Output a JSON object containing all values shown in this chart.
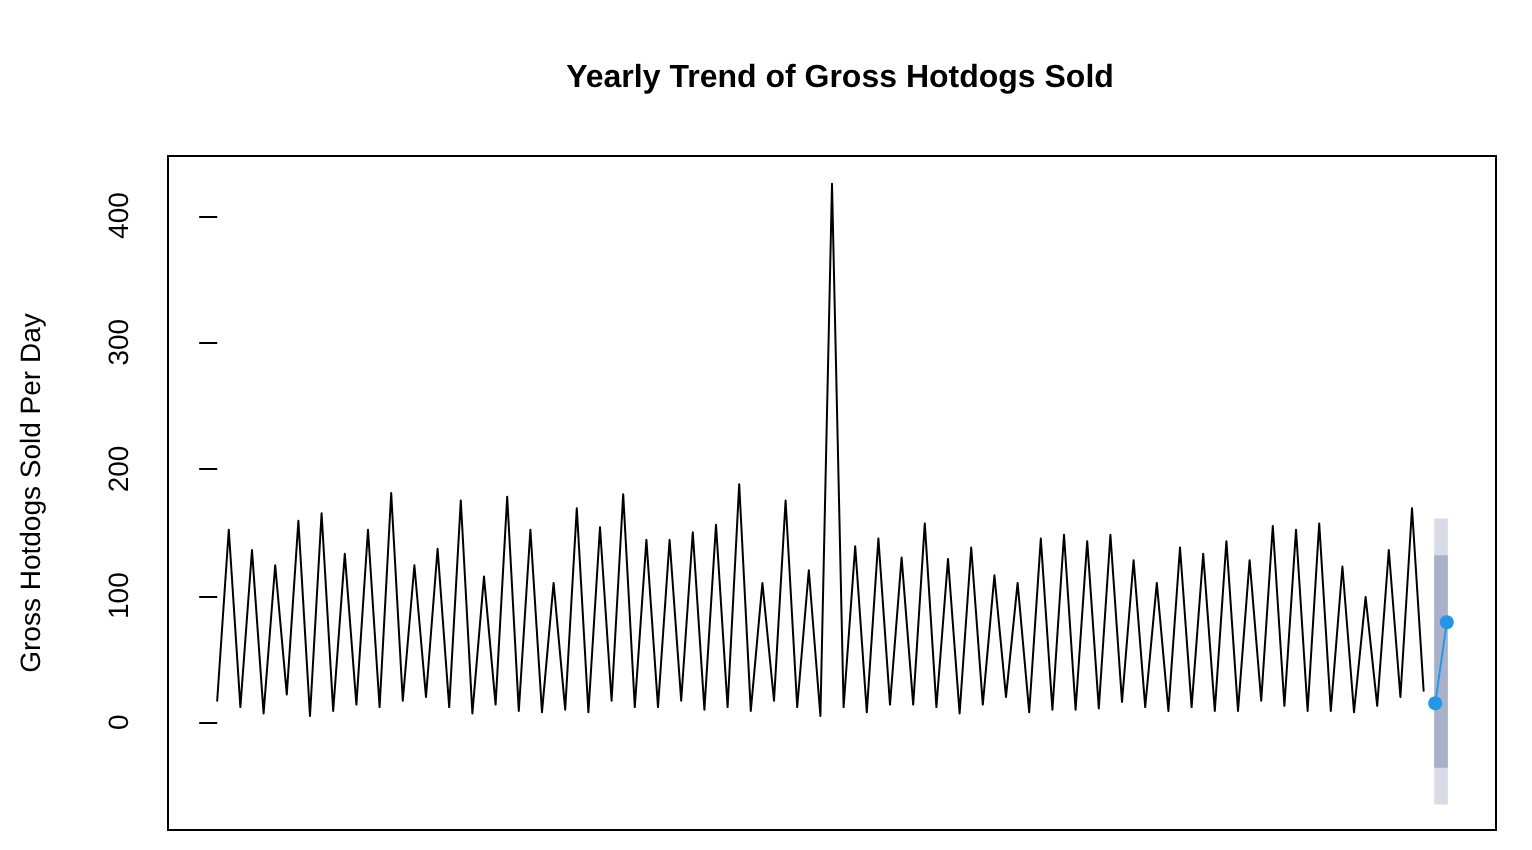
{
  "chart_data": {
    "type": "line",
    "title": "Yearly Trend of Gross Hotdogs Sold",
    "ylabel": "Gross Hotdogs Sold Per Day",
    "categories": [
      null,
      null,
      null,
      null,
      null,
      null,
      null,
      null,
      null,
      null,
      null,
      null,
      null,
      null,
      null,
      null,
      null,
      null,
      null,
      null,
      null,
      null,
      null,
      null,
      null,
      null,
      null,
      null,
      null,
      null,
      null,
      null,
      null,
      null,
      null,
      null,
      null,
      null,
      null,
      null,
      null,
      null,
      null,
      null,
      null,
      null,
      null,
      null,
      null,
      null,
      null,
      null,
      null,
      null,
      null,
      null,
      null,
      null,
      null,
      null,
      null,
      null,
      null,
      null,
      null,
      null,
      null,
      null,
      null,
      null,
      null,
      null,
      null,
      null,
      null,
      null,
      null,
      null,
      null,
      null,
      null,
      null,
      null,
      null,
      null,
      null,
      null,
      null,
      null,
      null,
      null,
      null,
      null,
      null,
      null,
      null,
      null,
      null,
      null,
      null,
      null,
      null,
      null,
      null,
      null,
      null,
      null
    ],
    "ylim": [
      -85,
      447
    ],
    "yticks": [
      0,
      100,
      200,
      300,
      400
    ],
    "tick_labels": "y",
    "marker": "none",
    "series": [
      {
        "color": "#000000",
        "values": [
          17,
          152,
          12,
          136,
          7,
          124,
          22,
          159,
          5,
          165,
          9,
          133,
          14,
          152,
          12,
          181,
          17,
          124,
          20,
          137,
          12,
          175,
          7,
          115,
          14,
          178,
          9,
          152,
          8,
          110,
          10,
          169,
          8,
          154,
          17,
          180,
          12,
          144,
          12,
          144,
          17,
          150,
          10,
          156,
          12,
          188,
          9,
          110,
          17,
          175,
          12,
          120,
          5,
          425,
          12,
          139,
          8,
          145,
          14,
          130,
          14,
          157,
          12,
          129,
          7,
          138,
          14,
          116,
          20,
          110,
          8,
          145,
          10,
          148,
          10,
          143,
          11,
          148,
          16,
          128,
          12,
          110,
          9,
          138,
          12,
          133,
          9,
          143,
          9,
          128,
          17,
          155,
          13,
          152,
          9,
          157,
          9,
          123,
          8,
          99,
          13,
          136,
          20,
          169,
          25,
          null,
          null
        ]
      },
      {
        "color": "#d9dce6",
        "values": [
          null,
          null,
          null,
          null,
          null,
          null,
          null,
          null,
          null,
          null,
          null,
          null,
          null,
          null,
          null,
          null,
          null,
          null,
          null,
          null,
          null,
          null,
          null,
          null,
          null,
          null,
          null,
          null,
          null,
          null,
          null,
          null,
          null,
          null,
          null,
          null,
          null,
          null,
          null,
          null,
          null,
          null,
          null,
          null,
          null,
          null,
          null,
          null,
          null,
          null,
          null,
          null,
          null,
          null,
          null,
          null,
          null,
          null,
          null,
          null,
          null,
          null,
          null,
          null,
          null,
          null,
          null,
          null,
          null,
          null,
          null,
          null,
          null,
          null,
          null,
          null,
          null,
          null,
          null,
          null,
          null,
          null,
          null,
          null,
          null,
          null,
          null,
          null,
          null,
          null,
          null,
          null,
          null,
          null,
          null,
          null,
          null,
          null,
          null,
          null,
          null,
          null,
          null,
          null,
          null,
          15,
          79
        ],
        "lower": [
          null,
          null,
          null,
          null,
          null,
          null,
          null,
          null,
          null,
          null,
          null,
          null,
          null,
          null,
          null,
          null,
          null,
          null,
          null,
          null,
          null,
          null,
          null,
          null,
          null,
          null,
          null,
          null,
          null,
          null,
          null,
          null,
          null,
          null,
          null,
          null,
          null,
          null,
          null,
          null,
          null,
          null,
          null,
          null,
          null,
          null,
          null,
          null,
          null,
          null,
          null,
          null,
          null,
          null,
          null,
          null,
          null,
          null,
          null,
          null,
          null,
          null,
          null,
          null,
          null,
          null,
          null,
          null,
          null,
          null,
          null,
          null,
          null,
          null,
          null,
          null,
          null,
          null,
          null,
          null,
          null,
          null,
          null,
          null,
          null,
          null,
          null,
          null,
          null,
          null,
          null,
          null,
          null,
          null,
          null,
          null,
          null,
          null,
          null,
          null,
          null,
          null,
          null,
          null,
          null,
          -64,
          -64
        ],
        "upper": [
          null,
          null,
          null,
          null,
          null,
          null,
          null,
          null,
          null,
          null,
          null,
          null,
          null,
          null,
          null,
          null,
          null,
          null,
          null,
          null,
          null,
          null,
          null,
          null,
          null,
          null,
          null,
          null,
          null,
          null,
          null,
          null,
          null,
          null,
          null,
          null,
          null,
          null,
          null,
          null,
          null,
          null,
          null,
          null,
          null,
          null,
          null,
          null,
          null,
          null,
          null,
          null,
          null,
          null,
          null,
          null,
          null,
          null,
          null,
          null,
          null,
          null,
          null,
          null,
          null,
          null,
          null,
          null,
          null,
          null,
          null,
          null,
          null,
          null,
          null,
          null,
          null,
          null,
          null,
          null,
          null,
          null,
          null,
          null,
          null,
          null,
          null,
          null,
          null,
          null,
          null,
          null,
          null,
          null,
          null,
          null,
          null,
          null,
          null,
          null,
          null,
          null,
          null,
          null,
          null,
          160,
          160
        ]
      },
      {
        "color": "#a9b0ca",
        "values": [
          null,
          null,
          null,
          null,
          null,
          null,
          null,
          null,
          null,
          null,
          null,
          null,
          null,
          null,
          null,
          null,
          null,
          null,
          null,
          null,
          null,
          null,
          null,
          null,
          null,
          null,
          null,
          null,
          null,
          null,
          null,
          null,
          null,
          null,
          null,
          null,
          null,
          null,
          null,
          null,
          null,
          null,
          null,
          null,
          null,
          null,
          null,
          null,
          null,
          null,
          null,
          null,
          null,
          null,
          null,
          null,
          null,
          null,
          null,
          null,
          null,
          null,
          null,
          null,
          null,
          null,
          null,
          null,
          null,
          null,
          null,
          null,
          null,
          null,
          null,
          null,
          null,
          null,
          null,
          null,
          null,
          null,
          null,
          null,
          null,
          null,
          null,
          null,
          null,
          null,
          null,
          null,
          null,
          null,
          null,
          null,
          null,
          null,
          null,
          null,
          null,
          null,
          null,
          null,
          null,
          15,
          79
        ],
        "lower": [
          null,
          null,
          null,
          null,
          null,
          null,
          null,
          null,
          null,
          null,
          null,
          null,
          null,
          null,
          null,
          null,
          null,
          null,
          null,
          null,
          null,
          null,
          null,
          null,
          null,
          null,
          null,
          null,
          null,
          null,
          null,
          null,
          null,
          null,
          null,
          null,
          null,
          null,
          null,
          null,
          null,
          null,
          null,
          null,
          null,
          null,
          null,
          null,
          null,
          null,
          null,
          null,
          null,
          null,
          null,
          null,
          null,
          null,
          null,
          null,
          null,
          null,
          null,
          null,
          null,
          null,
          null,
          null,
          null,
          null,
          null,
          null,
          null,
          null,
          null,
          null,
          null,
          null,
          null,
          null,
          null,
          null,
          null,
          null,
          null,
          null,
          null,
          null,
          null,
          null,
          null,
          null,
          null,
          null,
          null,
          null,
          null,
          null,
          null,
          null,
          null,
          null,
          null,
          null,
          null,
          -35,
          -35
        ],
        "upper": [
          null,
          null,
          null,
          null,
          null,
          null,
          null,
          null,
          null,
          null,
          null,
          null,
          null,
          null,
          null,
          null,
          null,
          null,
          null,
          null,
          null,
          null,
          null,
          null,
          null,
          null,
          null,
          null,
          null,
          null,
          null,
          null,
          null,
          null,
          null,
          null,
          null,
          null,
          null,
          null,
          null,
          null,
          null,
          null,
          null,
          null,
          null,
          null,
          null,
          null,
          null,
          null,
          null,
          null,
          null,
          null,
          null,
          null,
          null,
          null,
          null,
          null,
          null,
          null,
          null,
          null,
          null,
          null,
          null,
          null,
          null,
          null,
          null,
          null,
          null,
          null,
          null,
          null,
          null,
          null,
          null,
          null,
          null,
          null,
          null,
          null,
          null,
          null,
          null,
          null,
          null,
          null,
          null,
          null,
          null,
          null,
          null,
          null,
          null,
          null,
          null,
          null,
          null,
          null,
          null,
          131,
          131
        ]
      },
      {
        "color": "#2297e6",
        "marker": "circle",
        "values": [
          null,
          null,
          null,
          null,
          null,
          null,
          null,
          null,
          null,
          null,
          null,
          null,
          null,
          null,
          null,
          null,
          null,
          null,
          null,
          null,
          null,
          null,
          null,
          null,
          null,
          null,
          null,
          null,
          null,
          null,
          null,
          null,
          null,
          null,
          null,
          null,
          null,
          null,
          null,
          null,
          null,
          null,
          null,
          null,
          null,
          null,
          null,
          null,
          null,
          null,
          null,
          null,
          null,
          null,
          null,
          null,
          null,
          null,
          null,
          null,
          null,
          null,
          null,
          null,
          null,
          null,
          null,
          null,
          null,
          null,
          null,
          null,
          null,
          null,
          null,
          null,
          null,
          null,
          null,
          null,
          null,
          null,
          null,
          null,
          null,
          null,
          null,
          null,
          null,
          null,
          null,
          null,
          null,
          null,
          null,
          null,
          null,
          null,
          null,
          null,
          null,
          null,
          null,
          null,
          null,
          15,
          79
        ]
      }
    ]
  }
}
